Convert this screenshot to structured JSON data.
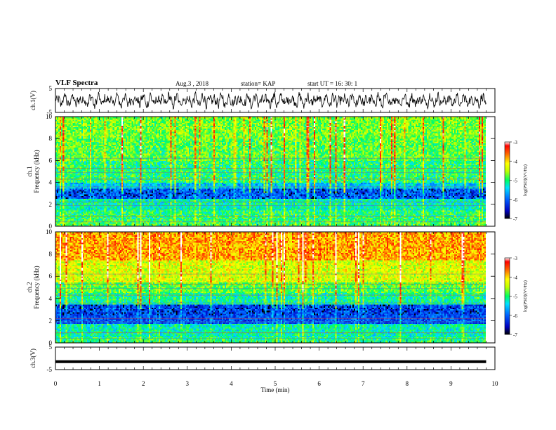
{
  "header": {
    "title": "VLF Spectra",
    "date": "Aug.3 , 2018",
    "station": "station= KAP",
    "start_ut": "start UT = 16: 30: 1"
  },
  "chart_data": [
    {
      "type": "line",
      "panel": "waveform-ch1",
      "ylabel": "ch.1(V)",
      "ylim": [
        -5,
        5
      ],
      "yticks": [
        -5,
        5
      ],
      "xlim": [
        0,
        10
      ],
      "description_values": "noisy waveform oscillating roughly between -3.5 and +3.5 V over 0 to 9.8 min"
    },
    {
      "type": "heatmap",
      "panel": "spectrogram-ch1",
      "ylabel": "ch.1 Frequency (kHz)",
      "ylim": [
        0,
        10
      ],
      "yticks": [
        0,
        2,
        4,
        6,
        8,
        10
      ],
      "xlim": [
        0,
        9.8
      ],
      "colorbar": {
        "label": "log(PSD)(V²/Hz)",
        "range": [
          -7,
          -3
        ],
        "ticks": [
          -3,
          -4,
          -5,
          -6,
          -7
        ]
      },
      "bands_log_psd": [
        {
          "f": [
            8.0,
            10.0
          ],
          "value": -4.7
        },
        {
          "f": [
            6.0,
            8.0
          ],
          "value": -4.8
        },
        {
          "f": [
            5.0,
            6.0
          ],
          "value": -5.0
        },
        {
          "f": [
            4.0,
            5.0
          ],
          "value": -5.0
        },
        {
          "f": [
            3.5,
            4.0
          ],
          "value": -5.5
        },
        {
          "f": [
            2.5,
            3.5
          ],
          "value": -6.0
        },
        {
          "f": [
            1.5,
            2.5
          ],
          "value": -5.2
        },
        {
          "f": [
            0.5,
            1.5
          ],
          "value": -5.0
        },
        {
          "f": [
            0.0,
            0.5
          ],
          "value": -4.9
        }
      ]
    },
    {
      "type": "heatmap",
      "panel": "spectrogram-ch2",
      "ylabel": "ch.2 Frequency (kHz)",
      "ylim": [
        0,
        10
      ],
      "yticks": [
        0,
        2,
        4,
        6,
        8,
        10
      ],
      "xlim": [
        0,
        9.8
      ],
      "colorbar": {
        "label": "log(PSD)(V²/Hz)",
        "range": [
          -7,
          -3
        ],
        "ticks": [
          -3,
          -4,
          -5,
          -6,
          -7
        ]
      },
      "bands_log_psd": [
        {
          "f": [
            7.5,
            10.0
          ],
          "value": -3.8
        },
        {
          "f": [
            5.5,
            7.5
          ],
          "value": -4.3
        },
        {
          "f": [
            4.5,
            5.5
          ],
          "value": -4.8
        },
        {
          "f": [
            3.5,
            4.5
          ],
          "value": -5.1
        },
        {
          "f": [
            1.8,
            3.5
          ],
          "value": -6.1
        },
        {
          "f": [
            0.5,
            1.8
          ],
          "value": -5.2
        },
        {
          "f": [
            0.0,
            0.5
          ],
          "value": -5.0
        }
      ]
    },
    {
      "type": "line",
      "panel": "waveform-ch3",
      "ylabel": "ch.3(V)",
      "ylim": [
        -5,
        5
      ],
      "yticks": [
        -5,
        5
      ],
      "xlim": [
        0,
        10
      ],
      "x": [
        0,
        9.8
      ],
      "y": [
        -1.5,
        -1.5
      ]
    }
  ],
  "xaxis": {
    "label": "Time (min)",
    "ticks": [
      "0",
      "1",
      "2",
      "3",
      "4",
      "5",
      "6",
      "7",
      "8",
      "9",
      "10"
    ],
    "range": [
      0,
      10
    ]
  },
  "colors": {
    "colormap": [
      "#000080",
      "#0000ff",
      "#00c0ff",
      "#00ff80",
      "#c0ff00",
      "#ffff00",
      "#ff8000",
      "#ff0000",
      "#ffffff"
    ],
    "trace": "#000000"
  }
}
